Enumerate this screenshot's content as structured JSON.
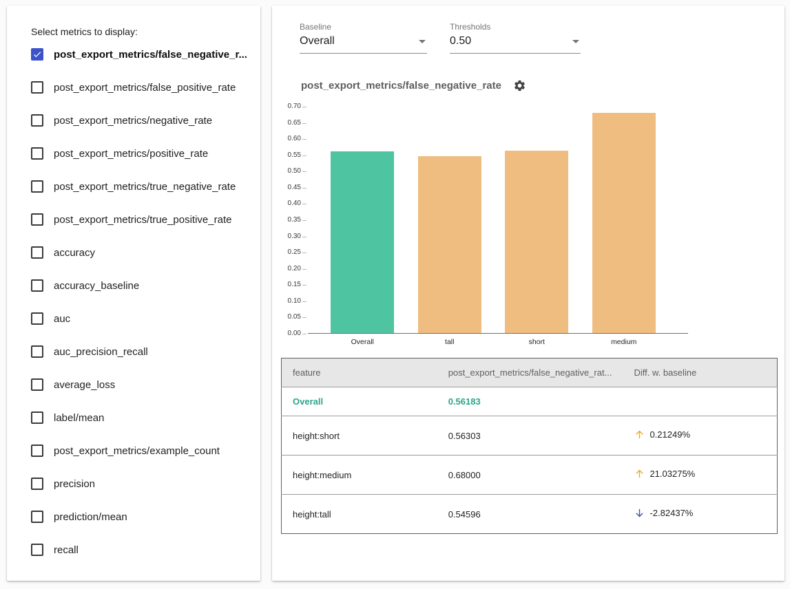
{
  "left_panel": {
    "title": "Select metrics to display:",
    "metrics": [
      {
        "label": "post_export_metrics/false_negative_r...",
        "checked": true
      },
      {
        "label": "post_export_metrics/false_positive_rate",
        "checked": false
      },
      {
        "label": "post_export_metrics/negative_rate",
        "checked": false
      },
      {
        "label": "post_export_metrics/positive_rate",
        "checked": false
      },
      {
        "label": "post_export_metrics/true_negative_rate",
        "checked": false
      },
      {
        "label": "post_export_metrics/true_positive_rate",
        "checked": false
      },
      {
        "label": "accuracy",
        "checked": false
      },
      {
        "label": "accuracy_baseline",
        "checked": false
      },
      {
        "label": "auc",
        "checked": false
      },
      {
        "label": "auc_precision_recall",
        "checked": false
      },
      {
        "label": "average_loss",
        "checked": false
      },
      {
        "label": "label/mean",
        "checked": false
      },
      {
        "label": "post_export_metrics/example_count",
        "checked": false
      },
      {
        "label": "precision",
        "checked": false
      },
      {
        "label": "prediction/mean",
        "checked": false
      },
      {
        "label": "recall",
        "checked": false
      }
    ]
  },
  "controls": {
    "baseline": {
      "label": "Baseline",
      "value": "Overall"
    },
    "thresholds": {
      "label": "Thresholds",
      "value": "0.50"
    }
  },
  "chart": {
    "title": "post_export_metrics/false_negative_rate"
  },
  "chart_data": {
    "type": "bar",
    "categories": [
      "Overall",
      "tall",
      "short",
      "medium"
    ],
    "values": [
      0.56183,
      0.54596,
      0.56303,
      0.68
    ],
    "bar_colors": [
      "#4fc4a1",
      "#f0bd81",
      "#f0bd81",
      "#f0bd81"
    ],
    "title": "post_export_metrics/false_negative_rate",
    "xlabel": "",
    "ylabel": "",
    "ylim": [
      0,
      0.7
    ],
    "ytick_step": 0.05,
    "grid": false,
    "legend": "none"
  },
  "table": {
    "headers": [
      "feature",
      "post_export_metrics/false_negative_rat...",
      "Diff. w. baseline"
    ],
    "rows": [
      {
        "feature": "Overall",
        "value": "0.56183",
        "diff": null,
        "direction": null,
        "baseline": true
      },
      {
        "feature": "height:short",
        "value": "0.56303",
        "diff": "0.21249%",
        "direction": "up",
        "baseline": false
      },
      {
        "feature": "height:medium",
        "value": "0.68000",
        "diff": "21.03275%",
        "direction": "up",
        "baseline": false
      },
      {
        "feature": "height:tall",
        "value": "0.54596",
        "diff": "-2.82437%",
        "direction": "down",
        "baseline": false
      }
    ]
  },
  "colors": {
    "checkbox_accent": "#3b52c8",
    "baseline_bar": "#4fc4a1",
    "slice_bar": "#f0bd81",
    "baseline_text": "#2aa58a",
    "up_arrow": "#f5a623",
    "down_arrow": "#3f51b5"
  }
}
